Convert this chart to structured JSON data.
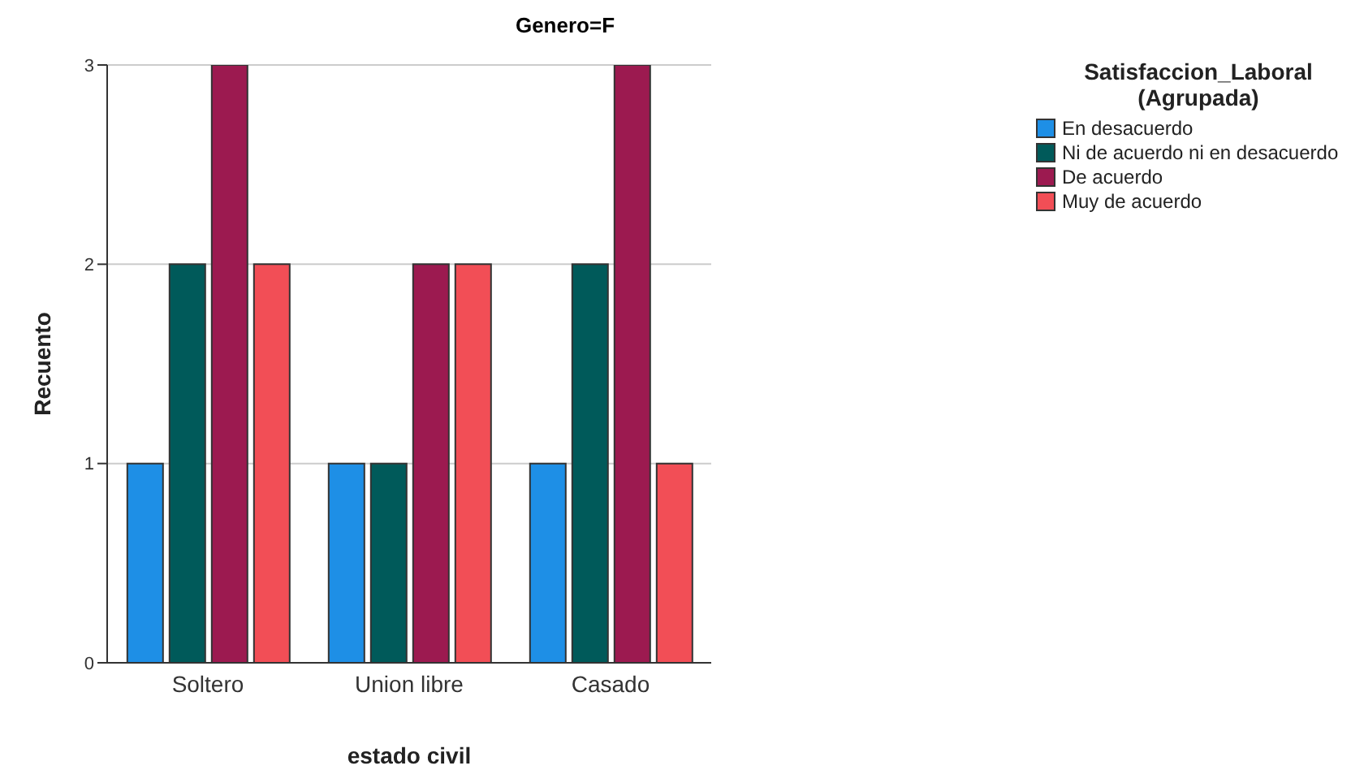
{
  "chart_data": {
    "type": "bar",
    "title": "Genero=F",
    "xlabel": "estado civil",
    "ylabel": "Recuento",
    "legend_title": "Satisfaccion_Laboral (Agrupada)",
    "categories": [
      "Soltero",
      "Union libre",
      "Casado"
    ],
    "series": [
      {
        "name": "En desacuerdo",
        "color": "#1e8fe6",
        "values": [
          1,
          1,
          1
        ]
      },
      {
        "name": "Ni de acuerdo ni en desacuerdo",
        "color": "#005a5a",
        "values": [
          2,
          1,
          2
        ]
      },
      {
        "name": "De acuerdo",
        "color": "#9c1a50",
        "values": [
          3,
          2,
          3
        ]
      },
      {
        "name": "Muy de acuerdo",
        "color": "#f24e56",
        "values": [
          2,
          2,
          1
        ]
      }
    ],
    "ylim": [
      0,
      3
    ],
    "yticks": [
      0,
      1,
      2,
      3
    ],
    "grid": "y",
    "legend": "top right"
  }
}
